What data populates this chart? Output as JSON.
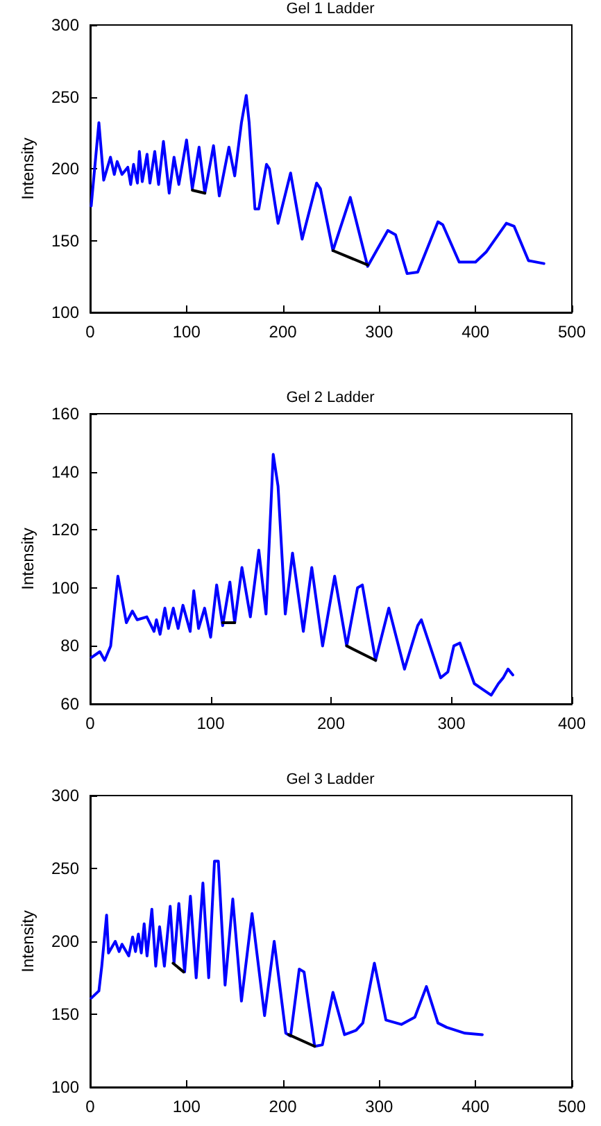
{
  "chart_data": [
    {
      "type": "line",
      "title": "Gel 1 Ladder",
      "ylabel": "Intensity",
      "xlim": [
        0,
        500
      ],
      "xticks": [
        0,
        100,
        200,
        300,
        400,
        500
      ],
      "ylim": [
        100,
        300
      ],
      "yticks": [
        100,
        150,
        200,
        250,
        300
      ],
      "marker": "none",
      "line_style": "solid",
      "series": [
        {
          "color": "#0000ff",
          "x": [
            1,
            9,
            14,
            21,
            25,
            28,
            33,
            39,
            42,
            45,
            49,
            51,
            54,
            59,
            62,
            67,
            71,
            76,
            82,
            87,
            92,
            100,
            106,
            113,
            119,
            128,
            134,
            144,
            150,
            157,
            162,
            165,
            171,
            175,
            183,
            186,
            195,
            208,
            220,
            235,
            239,
            252,
            270,
            288,
            309,
            317,
            329,
            340,
            361,
            366,
            383,
            400,
            411,
            432,
            440,
            455,
            471
          ],
          "values": [
            174,
            232,
            192,
            208,
            196,
            205,
            196,
            201,
            189,
            203,
            190,
            212,
            191,
            210,
            190,
            212,
            189,
            219,
            183,
            208,
            189,
            220,
            186,
            215,
            183,
            216,
            181,
            215,
            195,
            232,
            251,
            232,
            172,
            172,
            203,
            200,
            162,
            197,
            151,
            190,
            186,
            143,
            180,
            132,
            157,
            154,
            127,
            128,
            163,
            161,
            135,
            135,
            142,
            162,
            160,
            136,
            134
          ]
        },
        {
          "color": "#000000",
          "x": [
            106,
            119
          ],
          "values": [
            185,
            183
          ]
        },
        {
          "color": "#000000",
          "x": [
            252,
            288
          ],
          "values": [
            143,
            133
          ]
        }
      ]
    },
    {
      "type": "line",
      "title": "Gel 2 Ladder",
      "ylabel": "Intensity",
      "xlim": [
        0,
        400
      ],
      "xticks": [
        0,
        100,
        200,
        300,
        400
      ],
      "ylim": [
        60,
        160
      ],
      "yticks": [
        60,
        80,
        100,
        120,
        140,
        160
      ],
      "marker": "none",
      "line_style": "solid",
      "series": [
        {
          "color": "#0000ff",
          "x": [
            1,
            8,
            12,
            17,
            23,
            30,
            35,
            39,
            47,
            53,
            55,
            58,
            62,
            65,
            69,
            73,
            77,
            83,
            86,
            90,
            95,
            100,
            105,
            110,
            116,
            120,
            126,
            133,
            140,
            146,
            152,
            156,
            162,
            168,
            177,
            184,
            193,
            203,
            213,
            222,
            226,
            237,
            248,
            261,
            272,
            275,
            291,
            297,
            302,
            307,
            319,
            326,
            333,
            339,
            343,
            347,
            351
          ],
          "values": [
            76,
            78,
            75,
            80,
            104,
            88,
            92,
            89,
            90,
            85,
            89,
            84,
            93,
            86,
            93,
            86,
            94,
            85,
            99,
            86,
            93,
            83,
            101,
            87,
            102,
            88,
            107,
            90,
            113,
            91,
            146,
            135,
            91,
            112,
            85,
            107,
            80,
            104,
            80,
            100,
            101,
            75,
            93,
            72,
            87,
            89,
            69,
            71,
            80,
            81,
            67,
            65,
            63,
            67,
            69,
            72,
            70
          ]
        },
        {
          "color": "#000000",
          "x": [
            110,
            120
          ],
          "values": [
            88,
            88
          ]
        },
        {
          "color": "#000000",
          "x": [
            213,
            237
          ],
          "values": [
            80,
            75
          ]
        }
      ]
    },
    {
      "type": "line",
      "title": "Gel 3 Ladder",
      "ylabel": "Intensity",
      "xlim": [
        0,
        500
      ],
      "xticks": [
        0,
        100,
        200,
        300,
        400,
        500
      ],
      "ylim": [
        100,
        300
      ],
      "yticks": [
        100,
        150,
        200,
        250,
        300
      ],
      "marker": "none",
      "line_style": "solid",
      "series": [
        {
          "color": "#0000ff",
          "x": [
            1,
            9,
            12,
            17,
            19,
            26,
            30,
            33,
            40,
            44,
            47,
            50,
            53,
            56,
            59,
            64,
            68,
            72,
            77,
            83,
            87,
            92,
            98,
            104,
            110,
            117,
            123,
            129,
            133,
            140,
            148,
            157,
            168,
            181,
            191,
            203,
            208,
            217,
            222,
            233,
            241,
            252,
            264,
            276,
            283,
            295,
            307,
            323,
            337,
            349,
            361,
            370,
            389,
            407
          ],
          "values": [
            161,
            166,
            183,
            218,
            192,
            200,
            193,
            198,
            190,
            203,
            193,
            205,
            192,
            212,
            190,
            222,
            183,
            210,
            183,
            224,
            185,
            226,
            179,
            231,
            175,
            240,
            175,
            255,
            255,
            170,
            229,
            159,
            219,
            149,
            200,
            137,
            135,
            181,
            179,
            128,
            129,
            165,
            136,
            139,
            144,
            185,
            146,
            143,
            148,
            169,
            144,
            141,
            137,
            136
          ]
        },
        {
          "color": "#000000",
          "x": [
            86,
            97
          ],
          "values": [
            185,
            179
          ]
        },
        {
          "color": "#000000",
          "x": [
            206,
            233
          ],
          "values": [
            136,
            128
          ]
        }
      ]
    }
  ]
}
